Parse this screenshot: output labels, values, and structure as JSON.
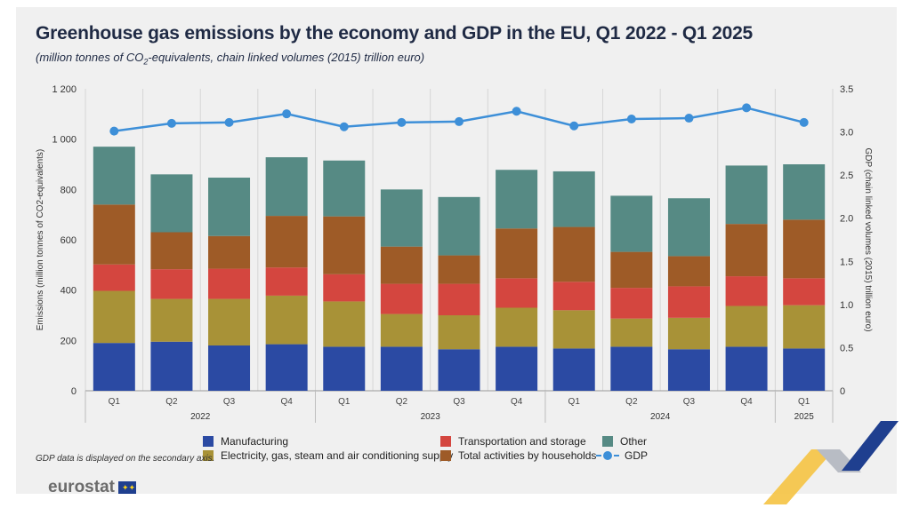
{
  "title": "Greenhouse gas emissions by the economy and GDP in the EU, Q1 2022 - Q1 2025",
  "subtitle_pre": "(million tonnes of CO",
  "subtitle_sub": "2",
  "subtitle_post": "-equivalents, chain linked volumes (2015) trillion euro)",
  "footnote": "GDP data is displayed on the secondary axis.",
  "brand": "eurostat",
  "chart_data": {
    "type": "bar",
    "stacked": true,
    "categories": [
      "Q1",
      "Q2",
      "Q3",
      "Q4",
      "Q1",
      "Q2",
      "Q3",
      "Q4",
      "Q1",
      "Q2",
      "Q3",
      "Q4",
      "Q1"
    ],
    "years": [
      {
        "label": "2022",
        "start": 0,
        "end": 3
      },
      {
        "label": "2023",
        "start": 4,
        "end": 7
      },
      {
        "label": "2024",
        "start": 8,
        "end": 11
      },
      {
        "label": "2025",
        "start": 12,
        "end": 12
      }
    ],
    "ylabel": "Emissions (million tonnes of CO2-equivalents)",
    "ylabel_right": "GDP (chain linked volumes (2015) trillion euro)",
    "ylim": [
      0,
      1200
    ],
    "yticks": [
      0,
      200,
      400,
      600,
      800,
      1000,
      1200
    ],
    "ytick_labels": [
      "0",
      "200",
      "400",
      "600",
      "800",
      "1 000",
      "1 200"
    ],
    "ylim_right": [
      0,
      3.5
    ],
    "yticks_right": [
      0,
      0.5,
      1.0,
      1.5,
      2.0,
      2.5,
      3.0,
      3.5
    ],
    "ytick_labels_right": [
      "0",
      "0.5",
      "1.0",
      "1.5",
      "2.0",
      "2.5",
      "3.0",
      "3.5"
    ],
    "series": [
      {
        "name": "Manufacturing",
        "color": "#2b4aa3",
        "values": [
          190,
          195,
          180,
          185,
          175,
          175,
          165,
          175,
          168,
          175,
          165,
          175,
          168
        ]
      },
      {
        "name": "Electricity, gas, steam and air conditioning supply",
        "color": "#a89237",
        "values": [
          207,
          170,
          185,
          193,
          180,
          130,
          135,
          155,
          152,
          112,
          125,
          162,
          172
        ]
      },
      {
        "name": "Transportation and storage",
        "color": "#d4463f",
        "values": [
          105,
          118,
          120,
          112,
          108,
          120,
          125,
          117,
          113,
          122,
          125,
          118,
          107
        ]
      },
      {
        "name": "Total activities by households",
        "color": "#9e5b27",
        "values": [
          238,
          147,
          130,
          205,
          230,
          148,
          113,
          198,
          218,
          143,
          120,
          208,
          233
        ]
      },
      {
        "name": "Other",
        "color": "#568a84",
        "values": [
          230,
          230,
          232,
          233,
          222,
          227,
          232,
          233,
          221,
          223,
          230,
          232,
          220
        ]
      }
    ],
    "line_series": {
      "name": "GDP",
      "color": "#3d8fd8",
      "axis": "right",
      "values": [
        3.01,
        3.1,
        3.11,
        3.21,
        3.06,
        3.11,
        3.12,
        3.24,
        3.07,
        3.15,
        3.16,
        3.28,
        3.11
      ]
    },
    "grid": true,
    "legend_position": "bottom"
  }
}
